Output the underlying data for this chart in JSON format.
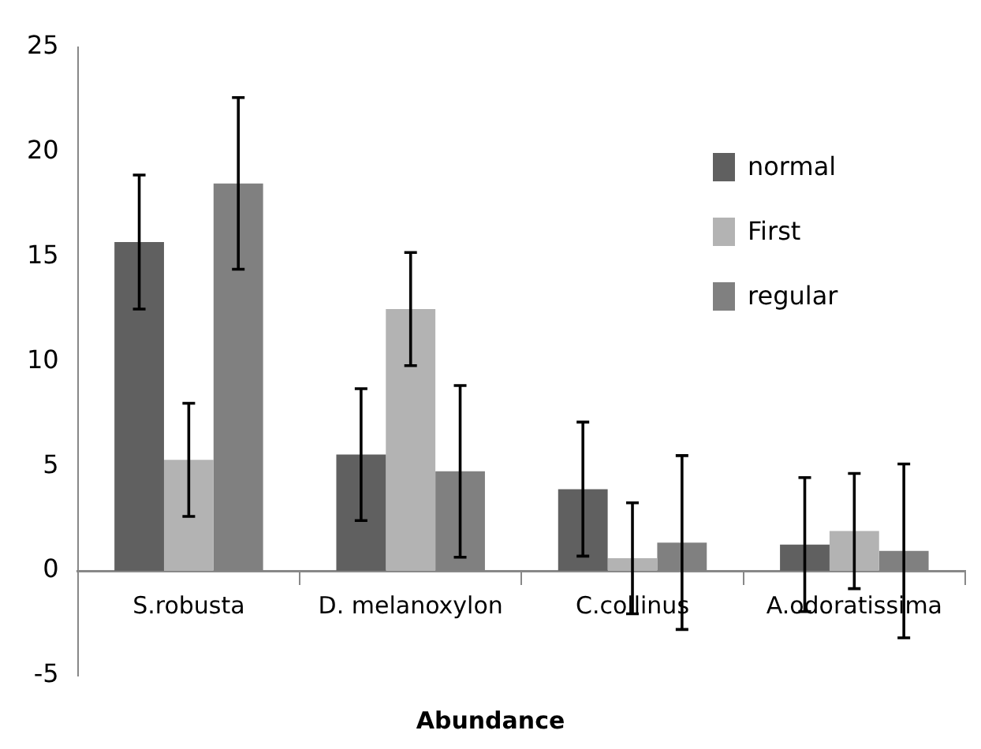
{
  "chart_data": {
    "type": "bar",
    "xlabel": "Abundance",
    "categories": [
      "S.robusta",
      "D. melanoxylon",
      "C.collinus",
      "A.odoratissima"
    ],
    "series": [
      {
        "name": "normal",
        "color": "#606060",
        "values": [
          15.7,
          5.55,
          3.9,
          1.25
        ],
        "errors": [
          3.2,
          3.15,
          3.2,
          3.2
        ]
      },
      {
        "name": "First",
        "color": "#b3b3b3",
        "values": [
          5.3,
          12.5,
          0.6,
          1.9
        ],
        "errors": [
          2.7,
          2.7,
          2.65,
          2.75
        ]
      },
      {
        "name": "regular",
        "color": "#808080",
        "values": [
          18.5,
          4.75,
          1.35,
          0.95
        ],
        "errors": [
          4.1,
          4.1,
          4.15,
          4.15
        ]
      }
    ],
    "ylim": [
      -5,
      25
    ],
    "yticks": [
      -5,
      0,
      5,
      10,
      15,
      20,
      25
    ],
    "grid": false,
    "legend": "top right"
  }
}
